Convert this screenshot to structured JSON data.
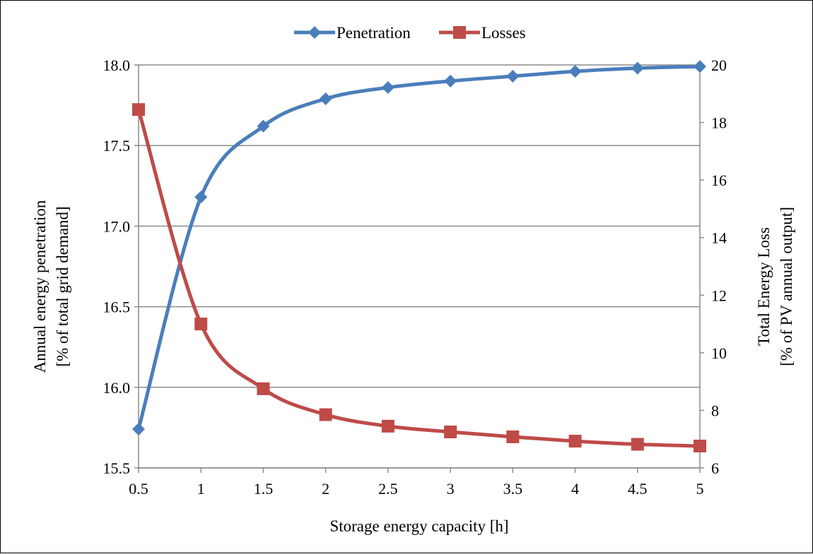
{
  "chart_data": {
    "type": "line",
    "xlabel": "Storage energy capacity [h]",
    "ylabel_left": [
      "Annual energy penetration",
      "[% of total grid demand]"
    ],
    "ylabel_right": [
      "Total Energy Loss",
      "[% of PV annual output]"
    ],
    "x": [
      0.5,
      1,
      1.5,
      2,
      2.5,
      3,
      3.5,
      4,
      4.5,
      5
    ],
    "x_tick_labels": [
      "0.5",
      "1",
      "1.5",
      "2",
      "2.5",
      "3",
      "3.5",
      "4",
      "4.5",
      "5"
    ],
    "ylim_left": [
      15.5,
      18.0
    ],
    "ylim_right": [
      6,
      20
    ],
    "y_left_ticks": [
      "15.5",
      "16.0",
      "16.5",
      "17.0",
      "17.5",
      "18.0"
    ],
    "y_right_ticks": [
      "6",
      "8",
      "10",
      "12",
      "14",
      "16",
      "18",
      "20"
    ],
    "grid": "horizontal",
    "legend_position": "top-center",
    "series": [
      {
        "name": "Penetration",
        "axis": "left",
        "marker": "diamond",
        "color": "#4A7EBB",
        "values": [
          15.74,
          17.18,
          17.62,
          17.79,
          17.86,
          17.9,
          17.93,
          17.96,
          17.98,
          17.99
        ]
      },
      {
        "name": "Losses",
        "axis": "right",
        "marker": "square",
        "color": "#BE4B48",
        "values": [
          18.45,
          11.0,
          8.75,
          7.85,
          7.45,
          7.25,
          7.08,
          6.93,
          6.82,
          6.76
        ]
      }
    ]
  }
}
